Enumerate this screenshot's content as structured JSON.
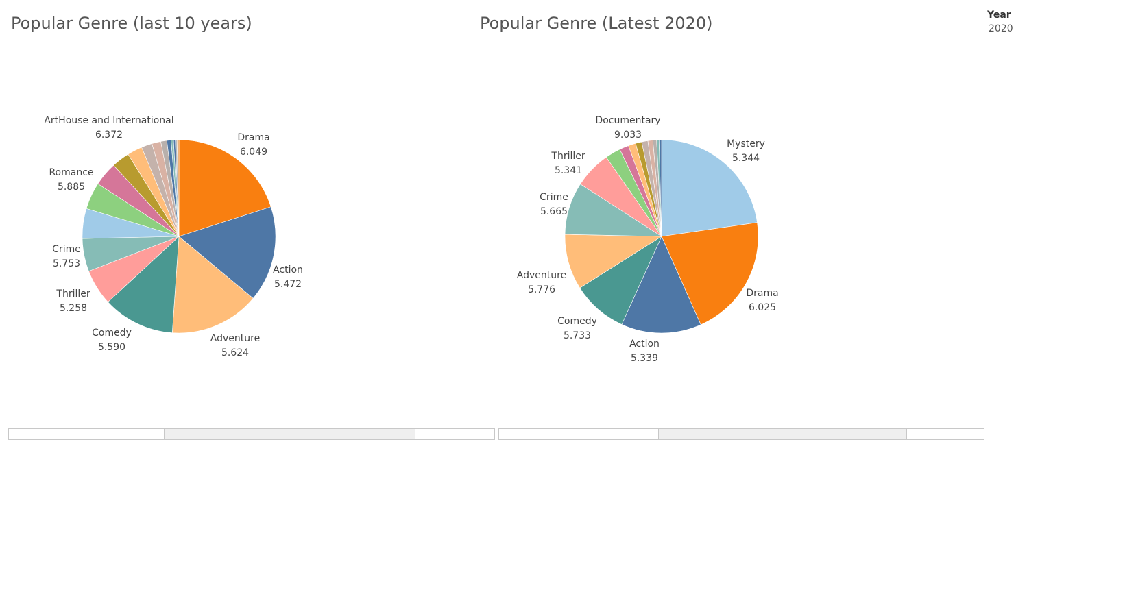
{
  "filter": {
    "label": "Year",
    "value": "2020"
  },
  "chart_data": [
    {
      "type": "pie",
      "title": "Popular Genre (last 10 years)",
      "slices": [
        {
          "label": "Drama",
          "value": "6.049",
          "share": 0.2,
          "color": "#f97f10"
        },
        {
          "label": "Action",
          "value": "5.472",
          "share": 0.16,
          "color": "#4e77a6"
        },
        {
          "label": "Adventure",
          "value": "5.624",
          "share": 0.15,
          "color": "#ffbd79"
        },
        {
          "label": "Comedy",
          "value": "5.590",
          "share": 0.12,
          "color": "#4a9891"
        },
        {
          "label": "Thriller",
          "value": "5.258",
          "share": 0.06,
          "color": "#ff9d9a"
        },
        {
          "label": "Crime",
          "value": "5.753",
          "share": 0.055,
          "color": "#86bcb6"
        },
        {
          "label": "",
          "value": "",
          "share": 0.05,
          "color": "#a0cbe8"
        },
        {
          "label": "",
          "value": "",
          "share": 0.045,
          "color": "#8dd07f"
        },
        {
          "label": "Romance",
          "value": "5.885",
          "share": 0.04,
          "color": "#d57699"
        },
        {
          "label": "",
          "value": "",
          "share": 0.03,
          "color": "#b89b2f"
        },
        {
          "label": "",
          "value": "",
          "share": 0.025,
          "color": "#ffbd79"
        },
        {
          "label": "",
          "value": "",
          "share": 0.018,
          "color": "#c4b2ab"
        },
        {
          "label": "",
          "value": "",
          "share": 0.015,
          "color": "#d9b2a4"
        },
        {
          "label": "",
          "value": "",
          "share": 0.01,
          "color": "#b8b0ac"
        },
        {
          "label": "",
          "value": "",
          "share": 0.007,
          "color": "#4e77a6"
        },
        {
          "label": "",
          "value": "",
          "share": 0.004,
          "color": "#86bcb6"
        },
        {
          "label": "",
          "value": "",
          "share": 0.003,
          "color": "#4e77a6"
        },
        {
          "label": "",
          "value": "",
          "share": 0.003,
          "color": "#bbbbbb"
        },
        {
          "label": "ArtHouse and International",
          "value": "6.372",
          "share": 0.003,
          "color": "#e49444"
        }
      ]
    },
    {
      "type": "pie",
      "title": "Popular Genre (Latest 2020)",
      "slices": [
        {
          "label": "Mystery",
          "value": "5.344",
          "share": 0.22,
          "color": "#a0cbe8"
        },
        {
          "label": "Drama",
          "value": "6.025",
          "share": 0.2,
          "color": "#f97f10"
        },
        {
          "label": "Action",
          "value": "5.339",
          "share": 0.13,
          "color": "#4e77a6"
        },
        {
          "label": "Comedy",
          "value": "5.733",
          "share": 0.09,
          "color": "#4a9891"
        },
        {
          "label": "Adventure",
          "value": "5.776",
          "share": 0.09,
          "color": "#ffbd79"
        },
        {
          "label": "Crime",
          "value": "5.665",
          "share": 0.085,
          "color": "#86bcb6"
        },
        {
          "label": "Thriller",
          "value": "5.341",
          "share": 0.06,
          "color": "#ff9d9a"
        },
        {
          "label": "",
          "value": "",
          "share": 0.025,
          "color": "#8dd07f"
        },
        {
          "label": "",
          "value": "",
          "share": 0.015,
          "color": "#d57699"
        },
        {
          "label": "",
          "value": "",
          "share": 0.012,
          "color": "#ffbd79"
        },
        {
          "label": "",
          "value": "",
          "share": 0.01,
          "color": "#b89b2f"
        },
        {
          "label": "",
          "value": "",
          "share": 0.01,
          "color": "#c4b2ab"
        },
        {
          "label": "",
          "value": "",
          "share": 0.008,
          "color": "#d9b2a4"
        },
        {
          "label": "",
          "value": "",
          "share": 0.006,
          "color": "#b8b0ac"
        },
        {
          "label": "",
          "value": "",
          "share": 0.004,
          "color": "#86bcb6"
        },
        {
          "label": "Documentary",
          "value": "9.033",
          "share": 0.004,
          "color": "#4e77a6"
        }
      ]
    }
  ]
}
